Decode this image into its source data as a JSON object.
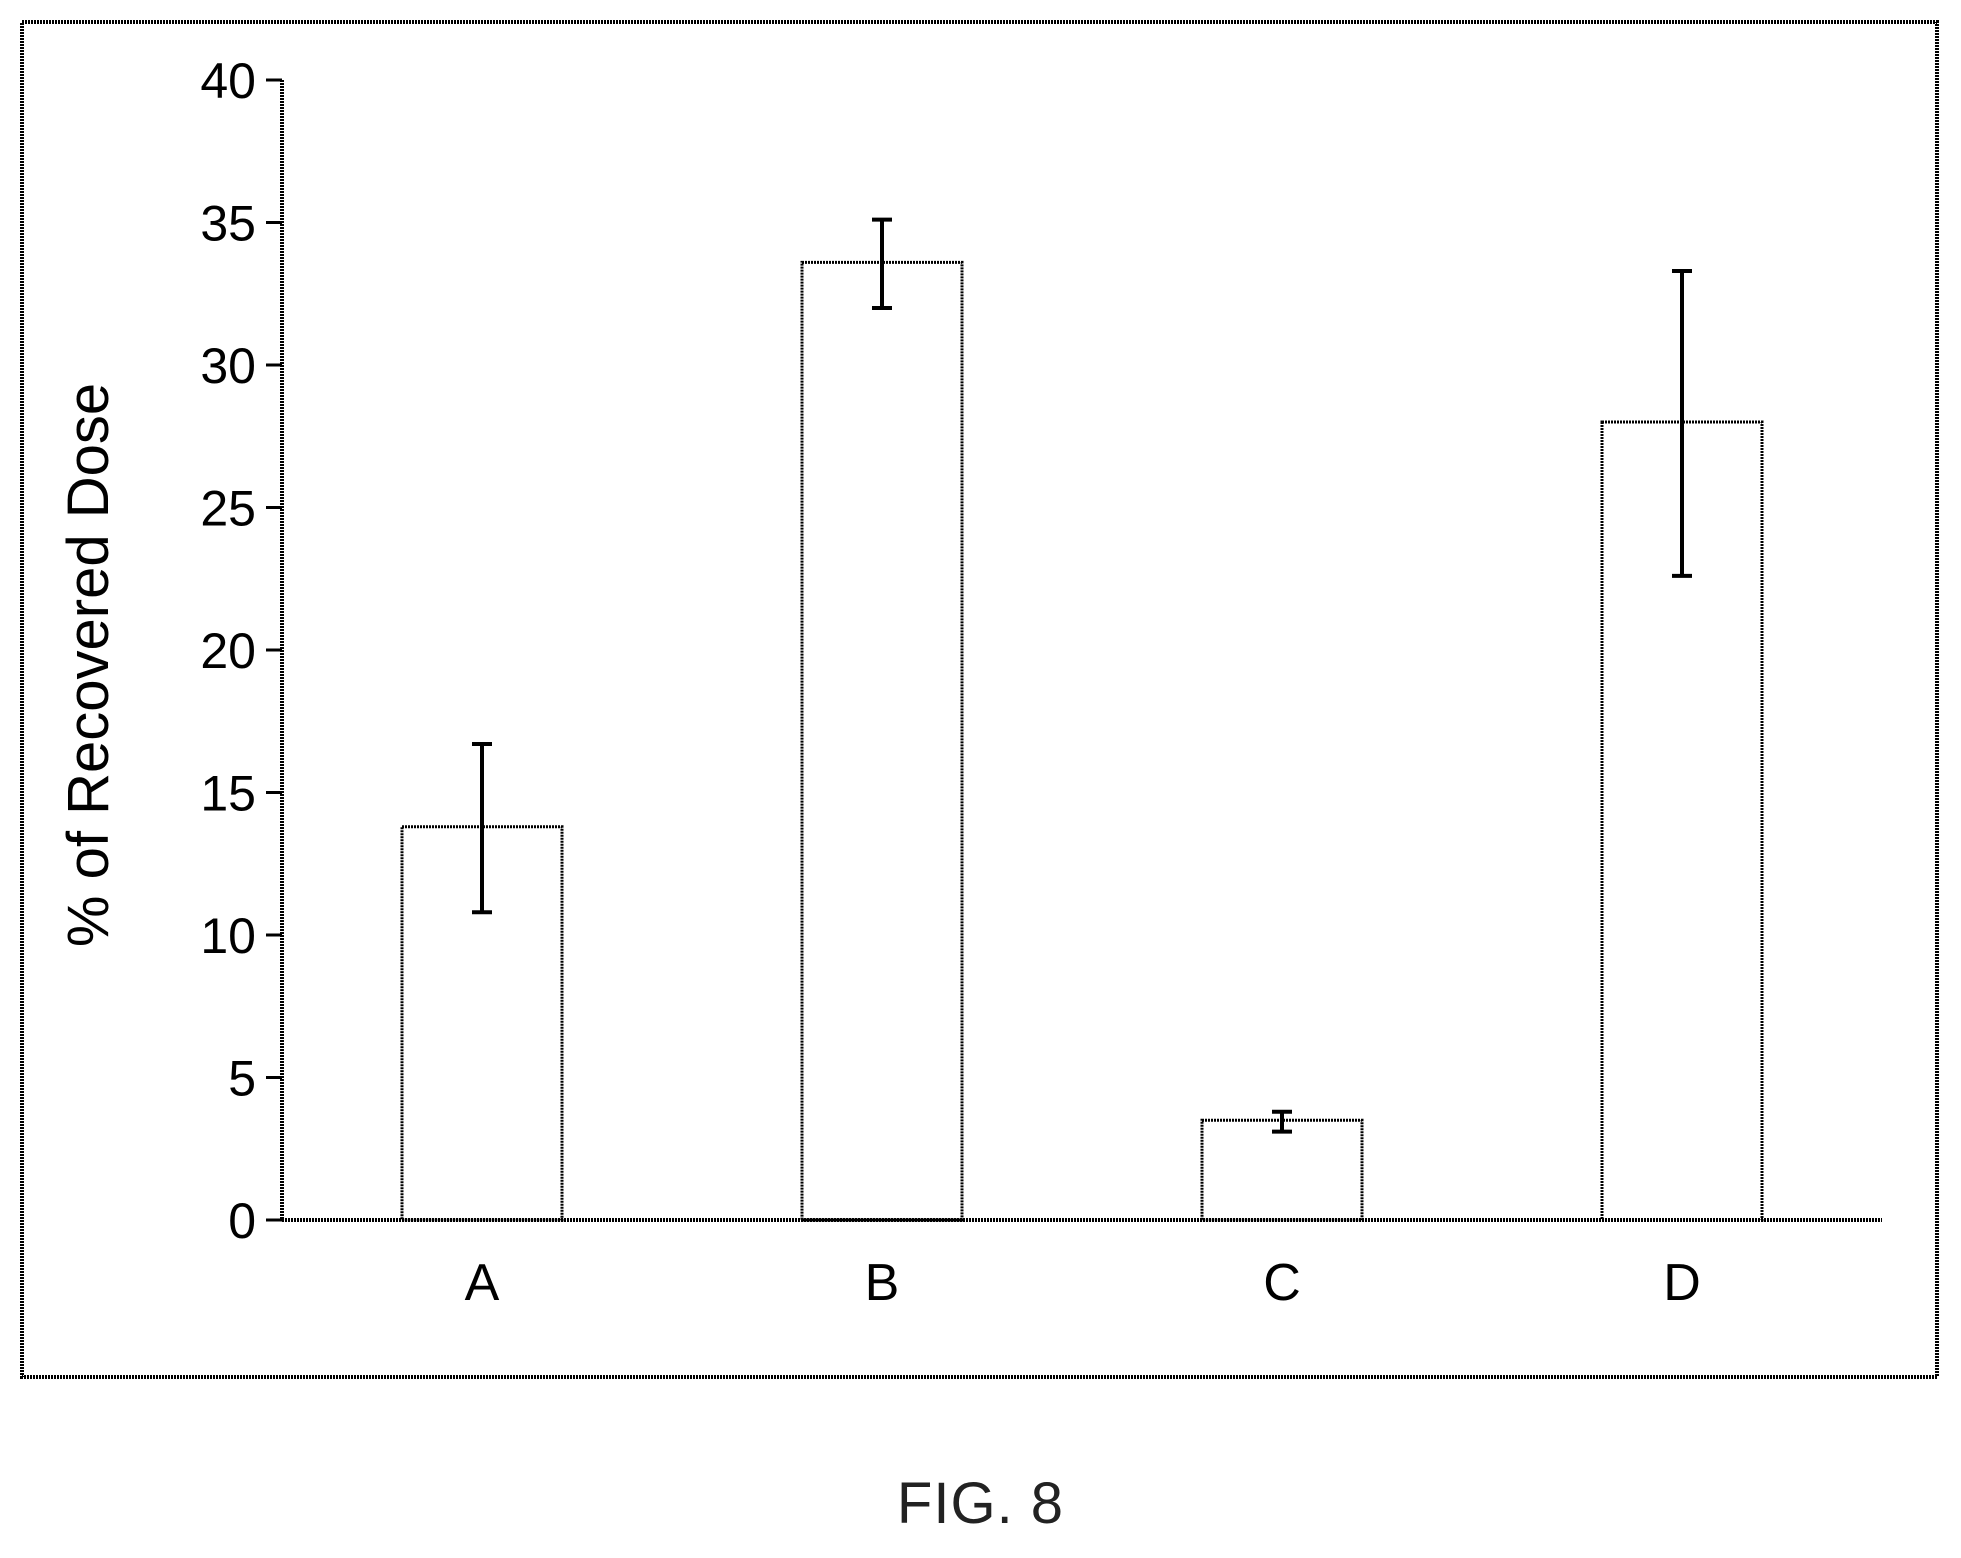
{
  "caption": "FIG. 8",
  "chart_data": {
    "type": "bar",
    "title": "",
    "xlabel": "",
    "ylabel": "% of Recovered Dose",
    "categories": [
      "A",
      "B",
      "C",
      "D"
    ],
    "values": [
      13.8,
      33.6,
      3.5,
      28.0
    ],
    "error_low": [
      10.8,
      32.0,
      3.1,
      22.6
    ],
    "error_high": [
      16.7,
      35.1,
      3.8,
      33.3
    ],
    "ylim": [
      0,
      40
    ],
    "yticks": [
      "0",
      "5",
      "10",
      "15",
      "20",
      "25",
      "30",
      "35",
      "40"
    ],
    "grid": false,
    "legend": "none",
    "bar_fill": "#ffffff",
    "bar_stroke": "#000000"
  }
}
